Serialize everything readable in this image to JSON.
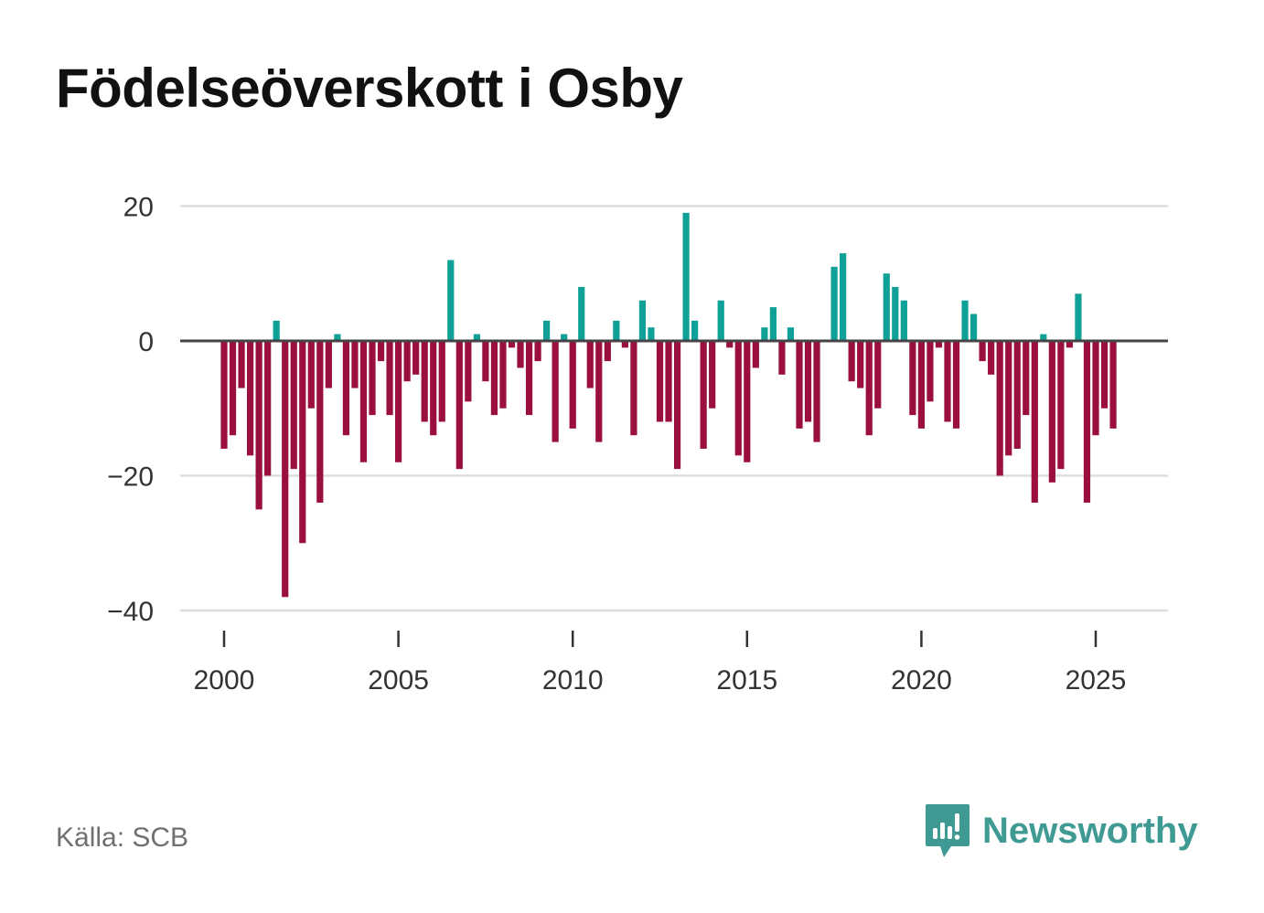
{
  "title": "Födelseöverskott i Osby",
  "source": "Källa: SCB",
  "brand": "Newsworthy",
  "colors": {
    "positive": "#0fa197",
    "negative": "#9a0f3f",
    "zero_line": "#444444",
    "grid": "#dddddd",
    "brand": "#3e9a92"
  },
  "chart_data": {
    "type": "bar",
    "title": "Födelseöverskott i Osby",
    "xlabel": "",
    "ylabel": "",
    "ylim": [
      -45,
      20
    ],
    "xlim": [
      1999.25,
      2027.2
    ],
    "y_ticks": [
      20,
      0,
      -20,
      -40
    ],
    "y_tick_labels": [
      "20",
      "0",
      "−20",
      "−40"
    ],
    "x_ticks": [
      2000,
      2005,
      2010,
      2015,
      2020,
      2025
    ],
    "x_tick_labels": [
      "2000",
      "2005",
      "2010",
      "2015",
      "2020",
      "2025"
    ],
    "frequency": "quarterly",
    "start": 2000.0,
    "step": 0.25,
    "values": [
      -16,
      -14,
      -7,
      -17,
      -25,
      -20,
      3,
      -38,
      -19,
      -30,
      -10,
      -24,
      -7,
      1,
      -14,
      -7,
      -18,
      -11,
      -3,
      -11,
      -18,
      -6,
      -5,
      -12,
      -14,
      -12,
      12,
      -19,
      -9,
      1,
      -6,
      -11,
      -10,
      -1,
      -4,
      -11,
      -3,
      3,
      -15,
      1,
      -13,
      8,
      -7,
      -15,
      -3,
      3,
      -1,
      -14,
      6,
      2,
      -12,
      -12,
      -19,
      19,
      3,
      -16,
      -10,
      6,
      -1,
      -17,
      -18,
      -4,
      2,
      5,
      -5,
      2,
      -13,
      -12,
      -15,
      0,
      11,
      13,
      -6,
      -7,
      -14,
      -10,
      10,
      8,
      6,
      -11,
      -13,
      -9,
      -1,
      -12,
      -13,
      6,
      4,
      -3,
      -5,
      -20,
      -17,
      -16,
      -11,
      -24,
      1,
      -21,
      -19,
      -1,
      7,
      -24,
      -14,
      -10,
      -13
    ]
  }
}
